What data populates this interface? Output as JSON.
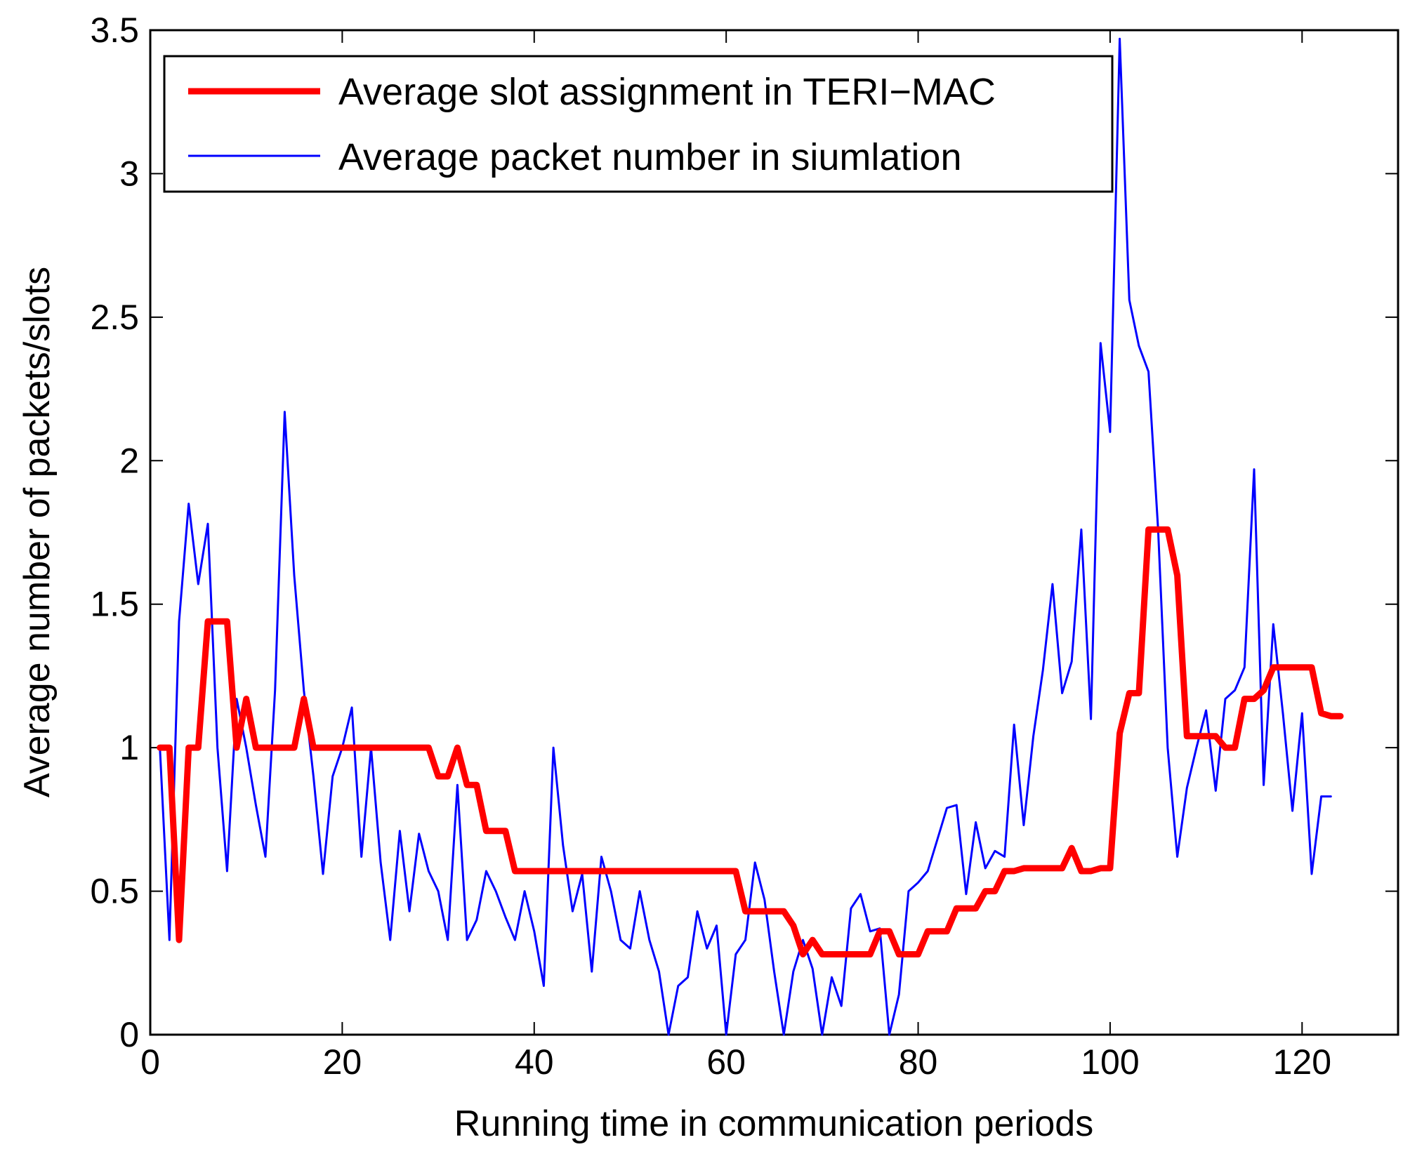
{
  "chart_data": {
    "type": "line",
    "title": "",
    "xlabel": "Running time in communication periods",
    "ylabel": "Average number of packets/slots",
    "xlim": [
      0,
      130
    ],
    "ylim": [
      0,
      3.5
    ],
    "xticks": [
      0,
      20,
      40,
      60,
      80,
      100,
      120
    ],
    "yticks": [
      0,
      0.5,
      1,
      1.5,
      2,
      2.5,
      3,
      3.5
    ],
    "xtick_labels": [
      "0",
      "20",
      "40",
      "60",
      "80",
      "100",
      "120"
    ],
    "ytick_labels": [
      "0",
      "0.5",
      "1",
      "1.5",
      "2",
      "2.5",
      "3",
      "3.5"
    ],
    "grid": false,
    "legend_position": "top-left",
    "series": [
      {
        "name": "Average slot assignment in TERI−MAC",
        "color": "#ff0000",
        "style": "thick",
        "x": [
          1,
          2,
          3,
          4,
          5,
          6,
          7,
          8,
          9,
          10,
          11,
          12,
          13,
          14,
          15,
          16,
          17,
          18,
          19,
          20,
          21,
          22,
          23,
          24,
          25,
          26,
          27,
          28,
          29,
          30,
          31,
          32,
          33,
          34,
          35,
          36,
          37,
          38,
          39,
          40,
          41,
          42,
          43,
          44,
          45,
          46,
          47,
          48,
          49,
          50,
          51,
          52,
          53,
          54,
          55,
          56,
          57,
          58,
          59,
          60,
          61,
          62,
          63,
          64,
          65,
          66,
          67,
          68,
          69,
          70,
          71,
          72,
          73,
          74,
          75,
          76,
          77,
          78,
          79,
          80,
          81,
          82,
          83,
          84,
          85,
          86,
          87,
          88,
          89,
          90,
          91,
          92,
          93,
          94,
          95,
          96,
          97,
          98,
          99,
          100,
          101,
          102,
          103,
          104,
          105,
          106,
          107,
          108,
          109,
          110,
          111,
          112,
          113,
          114,
          115,
          116,
          117,
          118,
          119,
          120,
          121,
          122,
          123,
          124
        ],
        "values": [
          1,
          1,
          0.33,
          1,
          1,
          1.44,
          1.44,
          1.44,
          1,
          1.17,
          1,
          1,
          1,
          1,
          1,
          1.17,
          1,
          1,
          1,
          1,
          1,
          1,
          1,
          1,
          1,
          1,
          1,
          1,
          1,
          0.9,
          0.9,
          1,
          0.87,
          0.87,
          0.71,
          0.71,
          0.71,
          0.57,
          0.57,
          0.57,
          0.57,
          0.57,
          0.57,
          0.57,
          0.57,
          0.57,
          0.57,
          0.57,
          0.57,
          0.57,
          0.57,
          0.57,
          0.57,
          0.57,
          0.57,
          0.57,
          0.57,
          0.57,
          0.57,
          0.57,
          0.57,
          0.43,
          0.43,
          0.43,
          0.43,
          0.43,
          0.38,
          0.28,
          0.33,
          0.28,
          0.28,
          0.28,
          0.28,
          0.28,
          0.28,
          0.36,
          0.36,
          0.28,
          0.28,
          0.28,
          0.36,
          0.36,
          0.36,
          0.44,
          0.44,
          0.44,
          0.5,
          0.5,
          0.57,
          0.57,
          0.58,
          0.58,
          0.58,
          0.58,
          0.58,
          0.65,
          0.57,
          0.57,
          0.58,
          0.58,
          1.05,
          1.19,
          1.19,
          1.76,
          1.76,
          1.76,
          1.6,
          1.04,
          1.04,
          1.04,
          1.04,
          1,
          1,
          1.17,
          1.17,
          1.2,
          1.28,
          1.28,
          1.28,
          1.28,
          1.28,
          1.12,
          1.11,
          1.11
        ]
      },
      {
        "name": "Average packet number in siumlation",
        "color": "#0000ff",
        "style": "thin",
        "x": [
          1,
          2,
          3,
          4,
          5,
          6,
          7,
          8,
          9,
          10,
          11,
          12,
          13,
          14,
          15,
          16,
          17,
          18,
          19,
          20,
          21,
          22,
          23,
          24,
          25,
          26,
          27,
          28,
          29,
          30,
          31,
          32,
          33,
          34,
          35,
          36,
          37,
          38,
          39,
          40,
          41,
          42,
          43,
          44,
          45,
          46,
          47,
          48,
          49,
          50,
          51,
          52,
          53,
          54,
          55,
          56,
          57,
          58,
          59,
          60,
          61,
          62,
          63,
          64,
          65,
          66,
          67,
          68,
          69,
          70,
          71,
          72,
          73,
          74,
          75,
          76,
          77,
          78,
          79,
          80,
          81,
          82,
          83,
          84,
          85,
          86,
          87,
          88,
          89,
          90,
          91,
          92,
          93,
          94,
          95,
          96,
          97,
          98,
          99,
          100,
          101,
          102,
          103,
          104,
          105,
          106,
          107,
          108,
          109,
          110,
          111,
          112,
          113,
          114,
          115,
          116,
          117,
          118,
          119,
          120,
          121,
          122,
          123
        ],
        "values": [
          1,
          0.33,
          1.44,
          1.85,
          1.57,
          1.78,
          1,
          0.57,
          1.17,
          1,
          0.8,
          0.62,
          1.2,
          2.17,
          1.6,
          1.2,
          0.9,
          0.56,
          0.9,
          1,
          1.14,
          0.62,
          1,
          0.6,
          0.33,
          0.71,
          0.43,
          0.7,
          0.57,
          0.5,
          0.33,
          0.87,
          0.33,
          0.4,
          0.57,
          0.5,
          0.41,
          0.33,
          0.5,
          0.36,
          0.17,
          1,
          0.66,
          0.43,
          0.56,
          0.22,
          0.62,
          0.5,
          0.33,
          0.3,
          0.5,
          0.33,
          0.22,
          0,
          0.17,
          0.2,
          0.43,
          0.3,
          0.38,
          0,
          0.28,
          0.33,
          0.6,
          0.47,
          0.22,
          0,
          0.22,
          0.33,
          0.23,
          0,
          0.2,
          0.1,
          0.44,
          0.49,
          0.36,
          0.37,
          0,
          0.14,
          0.5,
          0.53,
          0.57,
          0.68,
          0.79,
          0.8,
          0.49,
          0.74,
          0.58,
          0.64,
          0.62,
          1.08,
          0.73,
          1.04,
          1.27,
          1.57,
          1.19,
          1.3,
          1.76,
          1.1,
          2.41,
          2.1,
          3.47,
          2.56,
          2.4,
          2.31,
          1.76,
          1,
          0.62,
          0.86,
          1,
          1.13,
          0.85,
          1.17,
          1.2,
          1.28,
          1.97,
          0.87,
          1.43,
          1.12,
          0.78,
          1.12,
          0.56,
          0.83,
          0.83
        ]
      }
    ]
  }
}
